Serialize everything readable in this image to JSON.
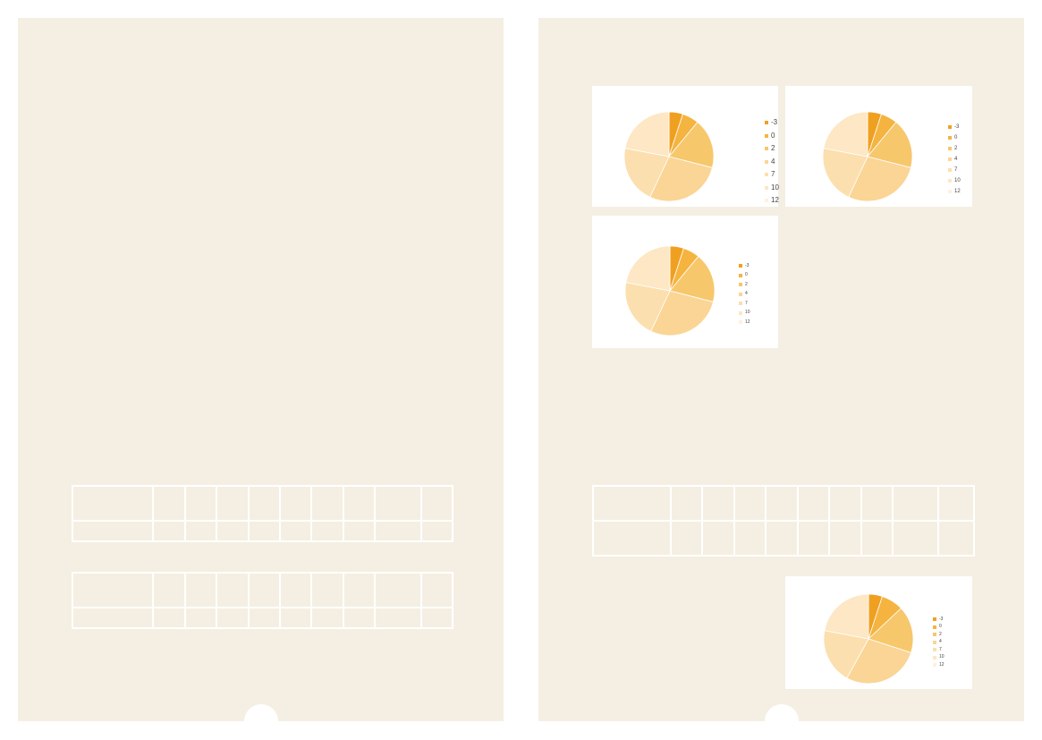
{
  "pages": [
    {
      "side": "left"
    },
    {
      "side": "right"
    }
  ],
  "colors": {
    "page": "#f5efe3",
    "slices": [
      "#f0a020",
      "#f5b440",
      "#f7c76c",
      "#fad595",
      "#fcdfae",
      "#fde7c4",
      "#fef1dd"
    ]
  },
  "chart_data": [
    {
      "type": "pie",
      "categories": [
        "-3",
        "0",
        "2",
        "4",
        "7",
        "10",
        "12"
      ],
      "values": [
        5,
        6,
        18,
        28,
        21,
        22,
        0
      ],
      "legend": "right"
    },
    {
      "type": "pie",
      "categories": [
        "-3",
        "0",
        "2",
        "4",
        "7",
        "10",
        "12"
      ],
      "values": [
        5,
        6,
        18,
        28,
        21,
        22,
        0
      ],
      "legend": "right"
    },
    {
      "type": "pie",
      "categories": [
        "-3",
        "0",
        "2",
        "4",
        "7",
        "10",
        "12"
      ],
      "values": [
        5,
        6,
        18,
        28,
        21,
        22,
        0
      ],
      "legend": "right"
    },
    {
      "type": "pie",
      "categories": [
        "-3",
        "0",
        "2",
        "4",
        "7",
        "10",
        "12"
      ],
      "values": [
        5,
        8,
        17,
        28,
        20,
        22,
        0
      ],
      "legend": "right"
    }
  ]
}
